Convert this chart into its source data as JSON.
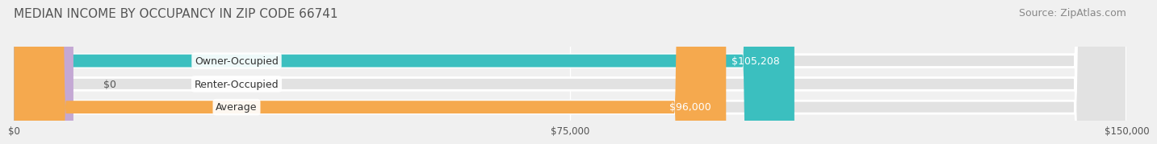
{
  "title": "MEDIAN INCOME BY OCCUPANCY IN ZIP CODE 66741",
  "source": "Source: ZipAtlas.com",
  "categories": [
    "Owner-Occupied",
    "Renter-Occupied",
    "Average"
  ],
  "values": [
    105208,
    0,
    96000
  ],
  "bar_colors": [
    "#3bbfbf",
    "#c4a8d4",
    "#f5a94e"
  ],
  "value_labels": [
    "$105,208",
    "$0",
    "$96,000"
  ],
  "xlim": [
    0,
    150000
  ],
  "xticks": [
    0,
    75000,
    150000
  ],
  "xtick_labels": [
    "$0",
    "$75,000",
    "$150,000"
  ],
  "background_color": "#f0f0f0",
  "bar_bg_color": "#e2e2e2",
  "title_fontsize": 11,
  "source_fontsize": 9,
  "label_fontsize": 9,
  "value_fontsize": 9
}
